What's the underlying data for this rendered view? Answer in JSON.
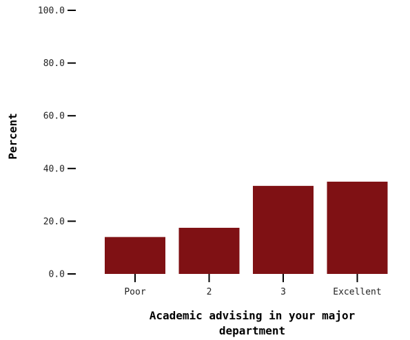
{
  "chart_data": {
    "type": "bar",
    "categories": [
      "Poor",
      "2",
      "3",
      "Excellent"
    ],
    "values": [
      14.0,
      17.5,
      33.4,
      35.0
    ],
    "title": "",
    "xlabel_lines": [
      "Academic advising in your major",
      "department"
    ],
    "ylabel": "Percent",
    "ylim": [
      0,
      100
    ],
    "yticks": [
      "0.0",
      "20.0",
      "40.0",
      "60.0",
      "80.0",
      "100.0"
    ],
    "grid": false,
    "colors": {
      "bar": "#7f1114",
      "axis": "#000000"
    }
  }
}
